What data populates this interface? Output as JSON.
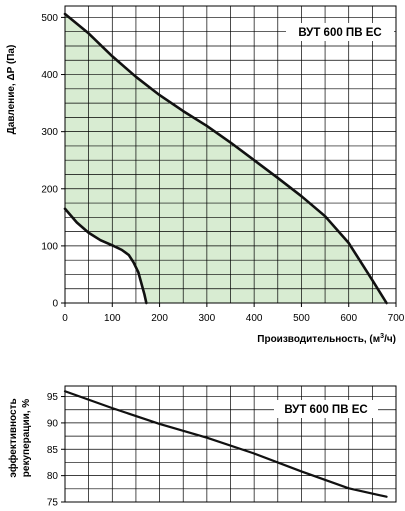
{
  "chart_data": [
    {
      "type": "line",
      "title": "ВУТ 600 ПВ ЕС",
      "xlabel": "Производительность, (м",
      "xlabel_sup": "3",
      "xlabel_tail": "/ч)",
      "ylabel": "Давление, ΔP (Па)",
      "xlim": [
        0,
        700
      ],
      "ylim": [
        0,
        520
      ],
      "xticks": [
        0,
        100,
        200,
        300,
        400,
        500,
        600,
        700
      ],
      "xtick_labels": [
        "0",
        "100",
        "200",
        "300",
        "400",
        "500",
        "600",
        "700"
      ],
      "yticks": [
        0,
        100,
        200,
        300,
        400,
        500
      ],
      "ytick_labels": [
        "0",
        "100",
        "200",
        "300",
        "400",
        "500"
      ],
      "grid": true,
      "fill_color": "#d8ecd2",
      "series": [
        {
          "x": [
            0,
            50,
            100,
            150,
            200,
            250,
            300,
            350,
            400,
            450,
            500,
            550,
            600,
            650,
            680
          ],
          "y": [
            506,
            472,
            432,
            396,
            364,
            336,
            310,
            281,
            250,
            219,
            187,
            152,
            105,
            40,
            0
          ]
        },
        {
          "x": [
            0,
            25,
            50,
            75,
            100,
            120,
            135,
            145,
            155,
            162,
            168,
            172
          ],
          "y": [
            165,
            141,
            123,
            110,
            101,
            93,
            84,
            71,
            54,
            33,
            15,
            0
          ]
        }
      ]
    },
    {
      "type": "line",
      "title": "ВУТ 600 ПВ ЕС",
      "ylabel_line1": "эффективность",
      "ylabel_line2": "рекуперации, %",
      "xlim": [
        0,
        700
      ],
      "ylim": [
        75,
        97
      ],
      "yticks": [
        75,
        80,
        85,
        90,
        95
      ],
      "ytick_labels": [
        "75",
        "80",
        "85",
        "90",
        "95"
      ],
      "grid": true,
      "series": [
        {
          "x": [
            0,
            100,
            200,
            300,
            400,
            500,
            600,
            680
          ],
          "y": [
            96,
            92.8,
            89.8,
            87.2,
            84.2,
            80.8,
            77.6,
            76
          ]
        }
      ]
    }
  ]
}
